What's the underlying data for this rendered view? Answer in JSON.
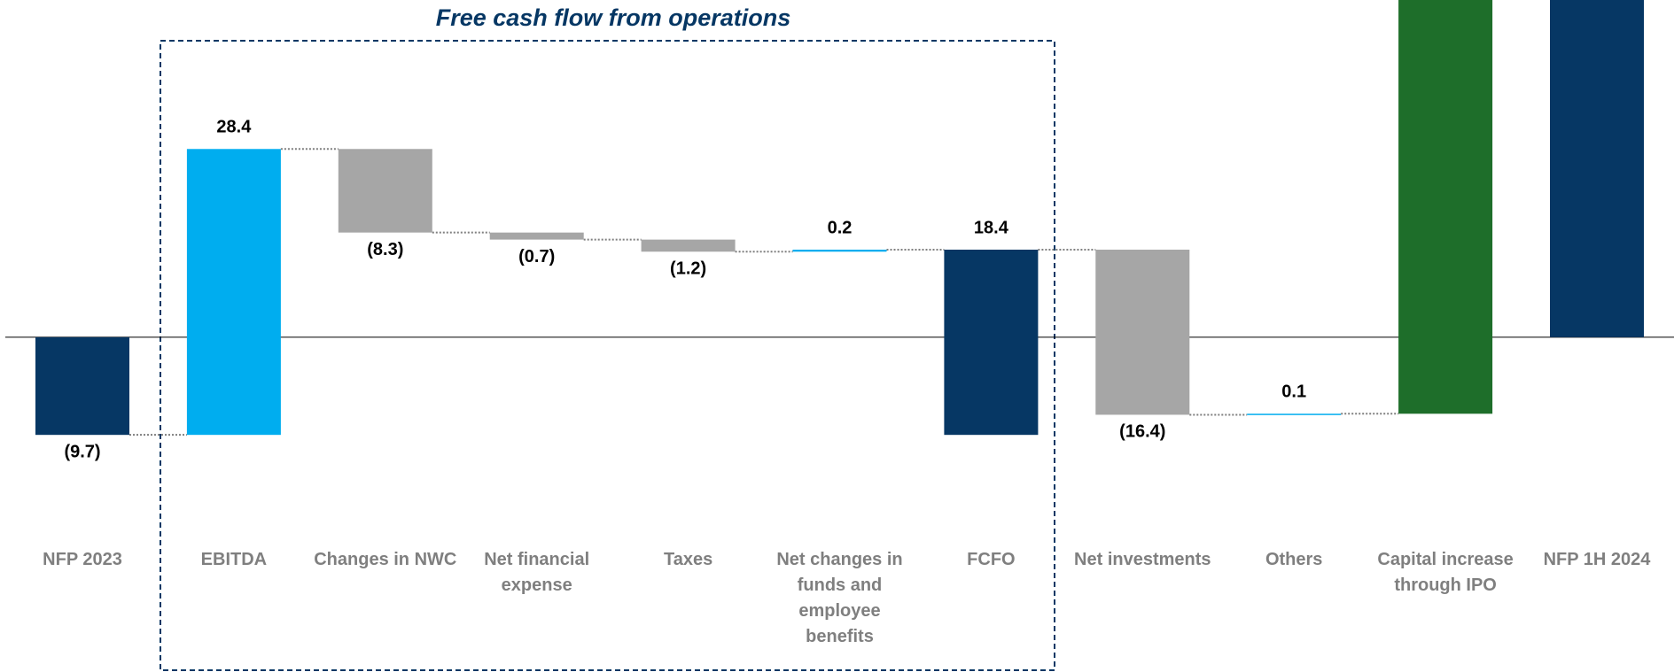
{
  "chart_data": {
    "type": "waterfall",
    "title": "Free cash flow from operations",
    "categories": [
      "NFP 2023",
      "EBITDA",
      "Changes in NWC",
      "Net financial expense",
      "Taxes",
      "Net changes in funds and employee benefits",
      "FCFO",
      "Net investments",
      "Others",
      "Capital increase through IPO",
      "NFP 1H 2024"
    ],
    "measures": [
      "absolute",
      "relative",
      "relative",
      "relative",
      "relative",
      "relative",
      "subtotal",
      "relative",
      "relative",
      "relative",
      "total"
    ],
    "values": [
      -9.7,
      28.4,
      -8.3,
      -0.7,
      -1.2,
      0.2,
      18.4,
      -16.4,
      0.1,
      45,
      37.4
    ],
    "value_labels": [
      "(9.7)",
      "28.4",
      "(8.3)",
      "(0.7)",
      "(1.2)",
      "0.2",
      "18.4",
      "(16.4)",
      "0.1",
      null,
      null
    ],
    "colors": [
      "#063764",
      "#00adef",
      "#a6a6a6",
      "#a6a6a6",
      "#a6a6a6",
      "#00adef",
      "#063764",
      "#a6a6a6",
      "#00adef",
      "#1e6e2a",
      "#063764"
    ],
    "ylim": [
      -30,
      33.5
    ]
  }
}
